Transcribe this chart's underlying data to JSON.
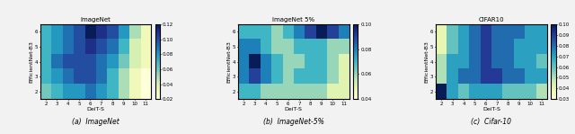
{
  "plots": [
    {
      "title": "ImageNet",
      "caption": "(a)  ImageNet",
      "xlabel": "DeiT-S",
      "ylabel": "EfficientNet-B3",
      "vmin": 0.02,
      "vmax": 0.12,
      "colorbar_ticks": [
        0.02,
        0.04,
        0.06,
        0.08,
        0.1,
        0.12
      ],
      "data": [
        [
          0.07,
          0.08,
          0.09,
          0.1,
          0.12,
          0.11,
          0.1,
          0.08,
          0.05,
          0.03
        ],
        [
          0.07,
          0.08,
          0.09,
          0.1,
          0.11,
          0.1,
          0.09,
          0.07,
          0.04,
          0.03
        ],
        [
          0.07,
          0.09,
          0.1,
          0.1,
          0.1,
          0.09,
          0.08,
          0.06,
          0.04,
          0.03
        ],
        [
          0.07,
          0.08,
          0.09,
          0.1,
          0.1,
          0.09,
          0.07,
          0.05,
          0.03,
          0.02
        ],
        [
          0.06,
          0.07,
          0.08,
          0.08,
          0.09,
          0.08,
          0.07,
          0.05,
          0.03,
          0.02
        ]
      ],
      "xticklabels": [
        "2",
        "3",
        "4",
        "5",
        "6",
        "7",
        "8",
        "9",
        "10",
        "11"
      ],
      "yticklabels": [
        "2",
        "3",
        "4",
        "5",
        "6"
      ]
    },
    {
      "title": "ImageNet 5%",
      "caption": "(b)  ImageNet-5%",
      "xlabel": "DeiT-S",
      "ylabel": "EfficientNet-B3",
      "vmin": 0.04,
      "vmax": 0.1,
      "colorbar_ticks": [
        0.04,
        0.06,
        0.08,
        0.1
      ],
      "data": [
        [
          0.07,
          0.07,
          0.07,
          0.06,
          0.07,
          0.08,
          0.09,
          0.1,
          0.09,
          0.08
        ],
        [
          0.08,
          0.08,
          0.07,
          0.06,
          0.06,
          0.07,
          0.07,
          0.07,
          0.06,
          0.06
        ],
        [
          0.08,
          0.1,
          0.08,
          0.07,
          0.06,
          0.06,
          0.07,
          0.07,
          0.06,
          0.05
        ],
        [
          0.08,
          0.09,
          0.08,
          0.07,
          0.06,
          0.07,
          0.07,
          0.07,
          0.06,
          0.05
        ],
        [
          0.07,
          0.07,
          0.06,
          0.06,
          0.06,
          0.06,
          0.06,
          0.06,
          0.05,
          0.05
        ]
      ],
      "xticklabels": [
        "2",
        "3",
        "4",
        "5",
        "6",
        "7",
        "8",
        "9",
        "10",
        "11"
      ],
      "yticklabels": [
        "2",
        "3",
        "4",
        "5",
        "6"
      ]
    },
    {
      "title": "CIFAR10",
      "caption": "(c)  Cifar-10",
      "xlabel": "DeiT-S",
      "ylabel": "EfficientNet-B3",
      "vmin": 0.03,
      "vmax": 0.1,
      "colorbar_ticks": [
        0.03,
        0.04,
        0.05,
        0.06,
        0.07,
        0.08,
        0.09,
        0.1
      ],
      "data": [
        [
          0.04,
          0.06,
          0.07,
          0.08,
          0.09,
          0.08,
          0.08,
          0.08,
          0.07,
          0.07
        ],
        [
          0.04,
          0.06,
          0.07,
          0.08,
          0.09,
          0.08,
          0.08,
          0.07,
          0.07,
          0.07
        ],
        [
          0.05,
          0.07,
          0.07,
          0.08,
          0.09,
          0.08,
          0.08,
          0.07,
          0.07,
          0.06
        ],
        [
          0.05,
          0.07,
          0.08,
          0.08,
          0.09,
          0.09,
          0.08,
          0.08,
          0.07,
          0.07
        ],
        [
          0.1,
          0.07,
          0.06,
          0.07,
          0.07,
          0.07,
          0.06,
          0.06,
          0.06,
          0.05
        ]
      ],
      "xticklabels": [
        "2",
        "3",
        "4",
        "5",
        "6",
        "7",
        "8",
        "9",
        "10",
        "11"
      ],
      "yticklabels": [
        "2",
        "3",
        "4",
        "5",
        "6"
      ]
    }
  ],
  "cmap": "YlGnBu",
  "figure_bgcolor": "#f2f2f2"
}
